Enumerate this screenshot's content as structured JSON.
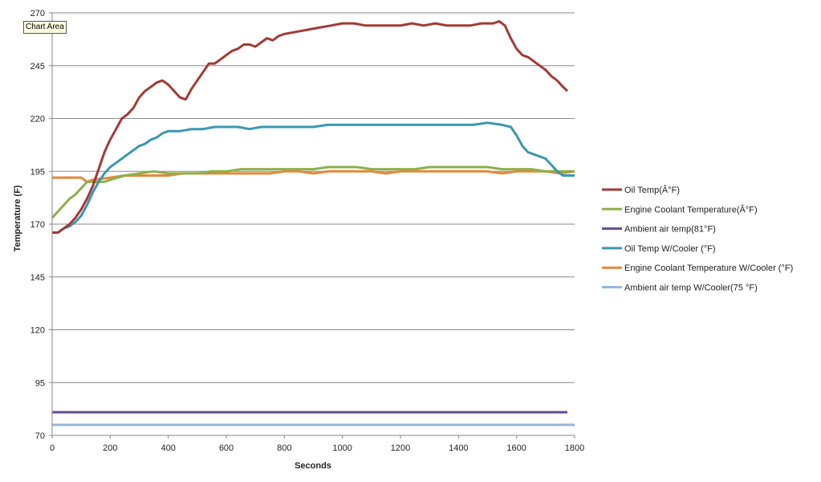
{
  "tooltip": "Chart Area",
  "chart_data": {
    "type": "line",
    "title": "",
    "xlabel": "Seconds",
    "ylabel": "Temperature (F)",
    "xlim": [
      0,
      1800
    ],
    "ylim": [
      70,
      270
    ],
    "xticks": [
      0,
      200,
      400,
      600,
      800,
      1000,
      1200,
      1400,
      1600,
      1800
    ],
    "yticks": [
      70,
      95,
      120,
      145,
      170,
      195,
      220,
      245,
      270
    ],
    "grid": "horizontal",
    "legend_position": "right",
    "series": [
      {
        "name": "Oil Temp(Â°F)",
        "color": "#a33a35",
        "x": [
          0,
          20,
          40,
          60,
          80,
          100,
          120,
          140,
          160,
          180,
          200,
          220,
          240,
          260,
          280,
          300,
          320,
          340,
          360,
          380,
          400,
          420,
          440,
          460,
          480,
          500,
          520,
          540,
          560,
          580,
          600,
          620,
          640,
          660,
          680,
          700,
          720,
          740,
          760,
          780,
          800,
          840,
          880,
          920,
          960,
          1000,
          1040,
          1080,
          1120,
          1160,
          1200,
          1240,
          1280,
          1320,
          1360,
          1400,
          1440,
          1480,
          1520,
          1540,
          1560,
          1580,
          1600,
          1620,
          1640,
          1660,
          1680,
          1700,
          1720,
          1740,
          1760,
          1775
        ],
        "values": [
          166,
          166,
          168,
          170,
          173,
          177,
          182,
          188,
          196,
          204,
          210,
          215,
          220,
          222,
          225,
          230,
          233,
          235,
          237,
          238,
          236,
          233,
          230,
          229,
          234,
          238,
          242,
          246,
          246,
          248,
          250,
          252,
          253,
          255,
          255,
          254,
          256,
          258,
          257,
          259,
          260,
          261,
          262,
          263,
          264,
          265,
          265,
          264,
          264,
          264,
          264,
          265,
          264,
          265,
          264,
          264,
          264,
          265,
          265,
          266,
          264,
          258,
          253,
          250,
          249,
          247,
          245,
          243,
          240,
          238,
          235,
          233
        ]
      },
      {
        "name": "Engine Coolant Temperature(Â°F)",
        "color": "#8db04b",
        "x": [
          0,
          20,
          40,
          60,
          80,
          100,
          120,
          140,
          160,
          180,
          200,
          250,
          300,
          350,
          400,
          450,
          500,
          550,
          600,
          650,
          700,
          750,
          800,
          850,
          900,
          950,
          1000,
          1050,
          1100,
          1150,
          1200,
          1250,
          1300,
          1350,
          1400,
          1450,
          1500,
          1550,
          1600,
          1650,
          1700,
          1750,
          1800
        ],
        "values": [
          173,
          176,
          179,
          182,
          184,
          187,
          190,
          190,
          190,
          190,
          191,
          193,
          194,
          195,
          194,
          194,
          194,
          195,
          195,
          196,
          196,
          196,
          196,
          196,
          196,
          197,
          197,
          197,
          196,
          196,
          196,
          196,
          197,
          197,
          197,
          197,
          197,
          196,
          196,
          196,
          195,
          195,
          195
        ]
      },
      {
        "name": "Ambient air temp(81°F)",
        "color": "#6a4a93",
        "x": [
          0,
          1775
        ],
        "values": [
          81,
          81
        ]
      },
      {
        "name": "Oil Temp W/Cooler (°F)",
        "color": "#3a98b0",
        "x": [
          0,
          20,
          40,
          60,
          80,
          100,
          120,
          140,
          160,
          180,
          200,
          220,
          240,
          260,
          280,
          300,
          320,
          340,
          360,
          380,
          400,
          440,
          480,
          520,
          560,
          600,
          640,
          680,
          720,
          760,
          800,
          850,
          900,
          950,
          1000,
          1050,
          1100,
          1150,
          1200,
          1250,
          1300,
          1350,
          1400,
          1450,
          1500,
          1550,
          1580,
          1600,
          1620,
          1640,
          1660,
          1680,
          1700,
          1720,
          1740,
          1760,
          1780,
          1800
        ],
        "values": [
          166,
          166,
          168,
          169,
          171,
          174,
          179,
          185,
          190,
          194,
          197,
          199,
          201,
          203,
          205,
          207,
          208,
          210,
          211,
          213,
          214,
          214,
          215,
          215,
          216,
          216,
          216,
          215,
          216,
          216,
          216,
          216,
          216,
          217,
          217,
          217,
          217,
          217,
          217,
          217,
          217,
          217,
          217,
          217,
          218,
          217,
          216,
          212,
          207,
          204,
          203,
          202,
          201,
          198,
          195,
          193,
          193,
          193
        ]
      },
      {
        "name": "Engine Coolant Temperature W/Cooler (°F)",
        "color": "#e8873a",
        "x": [
          0,
          100,
          120,
          140,
          200,
          250,
          300,
          350,
          400,
          450,
          500,
          550,
          600,
          650,
          700,
          750,
          800,
          850,
          900,
          950,
          1000,
          1050,
          1100,
          1150,
          1200,
          1250,
          1300,
          1350,
          1400,
          1450,
          1500,
          1550,
          1600,
          1650,
          1700,
          1750,
          1800
        ],
        "values": [
          192,
          192,
          190,
          191,
          192,
          193,
          193,
          193,
          193,
          194,
          194,
          194,
          194,
          194,
          194,
          194,
          195,
          195,
          194,
          195,
          195,
          195,
          195,
          194,
          195,
          195,
          195,
          195,
          195,
          195,
          195,
          194,
          195,
          195,
          195,
          194,
          195
        ]
      },
      {
        "name": "Ambient air temp W/Cooler(75 °F)",
        "color": "#97b6d9",
        "x": [
          0,
          1800
        ],
        "values": [
          75,
          75
        ]
      }
    ]
  }
}
